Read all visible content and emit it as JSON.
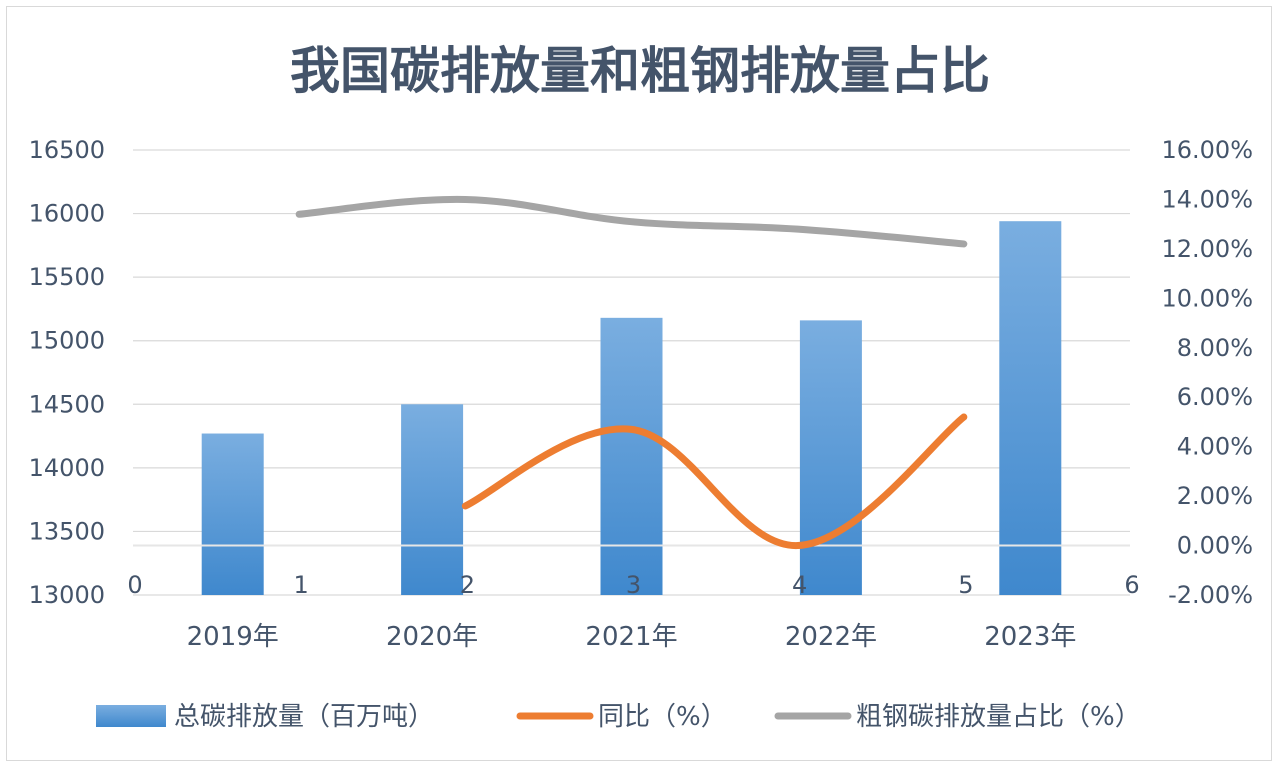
{
  "chart_data": {
    "type": "bar",
    "title": "我国碳排放量和粗钢排放量占比",
    "categories": [
      "2019年",
      "2020年",
      "2021年",
      "2022年",
      "2023年"
    ],
    "series": [
      {
        "name": "总碳排放量（百万吨）",
        "type": "bar",
        "axis": "left",
        "color": "#5b9bd5",
        "values": [
          14270,
          14500,
          15180,
          15160,
          15940
        ]
      },
      {
        "name": "同比（%）",
        "type": "line",
        "axis": "right",
        "color": "#ed7d31",
        "values": [
          null,
          1.6,
          4.7,
          0.0,
          5.2
        ]
      },
      {
        "name": "粗钢碳排放量占比（%）",
        "type": "line",
        "axis": "right",
        "color": "#a5a5a5",
        "values": [
          13.4,
          14.0,
          13.1,
          12.8,
          12.2
        ]
      }
    ],
    "left_axis": {
      "min": 13000,
      "max": 16500,
      "ticks": [
        "13000",
        "13500",
        "14000",
        "14500",
        "15000",
        "15500",
        "16000",
        "16500"
      ]
    },
    "right_axis": {
      "min": -2,
      "max": 16,
      "ticks": [
        "-2.00%",
        "0.00%",
        "2.00%",
        "4.00%",
        "6.00%",
        "8.00%",
        "10.00%",
        "12.00%",
        "14.00%",
        "16.00%"
      ]
    },
    "secondary_x_ticks": [
      "0",
      "1",
      "2",
      "3",
      "4",
      "5",
      "6"
    ],
    "grid": true,
    "legend_position": "bottom"
  }
}
